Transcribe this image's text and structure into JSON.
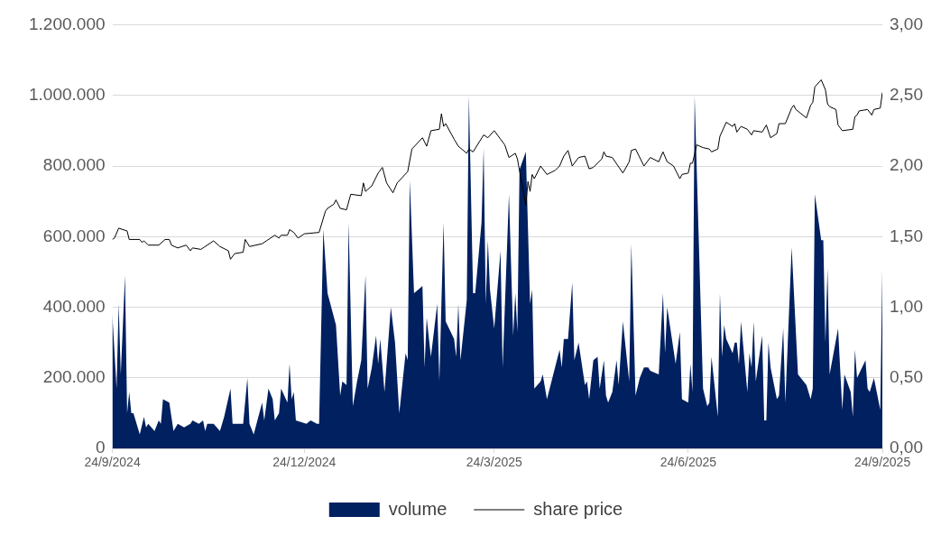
{
  "chart_data": {
    "type": "area",
    "series": [
      {
        "name": "volume",
        "color": "#002060",
        "x": [
          "2024-09-24",
          "2024-09-26",
          "2024-09-27",
          "2024-09-28",
          "2024-09-30",
          "2024-10-01",
          "2024-10-02",
          "2024-10-03",
          "2024-10-04",
          "2024-10-07",
          "2024-10-09",
          "2024-10-10",
          "2024-10-11",
          "2024-10-14",
          "2024-10-16",
          "2024-10-17",
          "2024-10-18",
          "2024-10-21",
          "2024-10-23",
          "2024-10-25",
          "2024-10-28",
          "2024-10-31",
          "2024-11-01",
          "2024-11-04",
          "2024-11-06",
          "2024-11-07",
          "2024-11-08",
          "2024-11-11",
          "2024-11-14",
          "2024-11-16",
          "2024-11-19",
          "2024-11-20",
          "2024-11-23",
          "2024-11-25",
          "2024-11-27",
          "2024-11-28",
          "2024-11-30",
          "2024-12-04",
          "2024-12-05",
          "2024-12-07",
          "2024-12-09",
          "2024-12-10",
          "2024-12-12",
          "2024-12-13",
          "2024-12-16",
          "2024-12-17",
          "2024-12-18",
          "2024-12-19",
          "2024-12-20",
          "2024-12-25",
          "2024-12-27",
          "2024-12-30",
          "2024-12-31",
          "2025-01-02",
          "2025-01-04",
          "2025-01-08",
          "2025-01-10",
          "2025-01-11",
          "2025-01-13",
          "2025-01-14",
          "2025-01-16",
          "2025-01-18",
          "2025-01-20",
          "2025-01-22",
          "2025-01-23",
          "2025-01-25",
          "2025-01-27",
          "2025-01-28",
          "2025-01-29",
          "2025-01-31",
          "2025-02-03",
          "2025-02-05",
          "2025-02-07",
          "2025-02-10",
          "2025-02-11",
          "2025-02-12",
          "2025-02-14",
          "2025-02-18",
          "2025-02-19",
          "2025-02-20",
          "2025-02-22",
          "2025-02-25",
          "2025-02-26",
          "2025-02-28",
          "2025-03-01",
          "2025-03-05",
          "2025-03-06",
          "2025-03-07",
          "2025-03-08",
          "2025-03-11",
          "2025-03-12",
          "2025-03-14",
          "2025-03-15",
          "2025-03-18",
          "2025-03-19",
          "2025-03-20",
          "2025-03-21",
          "2025-03-22",
          "2025-03-24",
          "2025-03-27",
          "2025-03-28",
          "2025-03-31",
          "2025-04-02",
          "2025-04-03",
          "2025-04-04",
          "2025-04-05",
          "2025-04-08",
          "2025-04-10",
          "2025-04-11",
          "2025-04-12",
          "2025-04-15",
          "2025-04-16",
          "2025-04-18",
          "2025-04-24",
          "2025-04-25",
          "2025-04-26",
          "2025-04-28",
          "2025-04-30",
          "2025-05-01",
          "2025-05-03",
          "2025-05-06",
          "2025-05-07",
          "2025-05-08",
          "2025-05-10",
          "2025-05-12",
          "2025-05-13",
          "2025-05-15",
          "2025-05-16",
          "2025-05-17",
          "2025-05-19",
          "2025-05-21",
          "2025-05-22",
          "2025-05-24",
          "2025-05-27",
          "2025-05-28",
          "2025-05-30",
          "2025-06-01",
          "2025-06-03",
          "2025-06-05",
          "2025-06-06",
          "2025-06-10",
          "2025-06-12",
          "2025-06-13",
          "2025-06-14",
          "2025-06-18",
          "2025-06-20",
          "2025-06-21",
          "2025-06-24",
          "2025-06-25",
          "2025-06-26",
          "2025-06-27",
          "2025-07-01",
          "2025-07-03",
          "2025-07-04",
          "2025-07-05",
          "2025-07-08",
          "2025-07-09",
          "2025-07-10",
          "2025-07-11",
          "2025-07-12",
          "2025-07-15",
          "2025-07-16",
          "2025-07-17",
          "2025-07-18",
          "2025-07-19",
          "2025-07-22",
          "2025-07-23",
          "2025-07-24",
          "2025-07-25",
          "2025-07-26",
          "2025-07-29",
          "2025-07-30",
          "2025-07-31",
          "2025-08-01",
          "2025-08-02",
          "2025-08-05",
          "2025-08-06",
          "2025-08-08",
          "2025-08-09",
          "2025-08-12",
          "2025-08-15",
          "2025-08-19",
          "2025-08-21",
          "2025-08-22",
          "2025-08-23",
          "2025-08-26",
          "2025-08-27",
          "2025-08-28",
          "2025-08-29",
          "2025-08-30",
          "2025-09-03",
          "2025-09-05",
          "2025-09-06",
          "2025-09-09",
          "2025-09-10",
          "2025-09-11",
          "2025-09-12",
          "2025-09-16",
          "2025-09-17",
          "2025-09-18",
          "2025-09-20",
          "2025-09-23",
          "2025-09-24"
        ],
        "values": [
          380000,
          170000,
          410000,
          210000,
          490000,
          100000,
          160000,
          100000,
          100000,
          40000,
          90000,
          60000,
          70000,
          50000,
          80000,
          70000,
          140000,
          130000,
          50000,
          70000,
          60000,
          70000,
          80000,
          70000,
          80000,
          50000,
          70000,
          70000,
          50000,
          90000,
          170000,
          70000,
          70000,
          70000,
          200000,
          70000,
          40000,
          130000,
          80000,
          170000,
          140000,
          80000,
          100000,
          170000,
          130000,
          240000,
          140000,
          160000,
          80000,
          70000,
          80000,
          70000,
          70000,
          620000,
          440000,
          350000,
          150000,
          190000,
          180000,
          640000,
          120000,
          190000,
          250000,
          490000,
          170000,
          230000,
          320000,
          240000,
          310000,
          160000,
          400000,
          300000,
          100000,
          270000,
          250000,
          760000,
          440000,
          460000,
          230000,
          370000,
          260000,
          410000,
          190000,
          640000,
          360000,
          310000,
          260000,
          410000,
          250000,
          420000,
          1000000,
          440000,
          440000,
          640000,
          850000,
          410000,
          590000,
          450000,
          340000,
          560000,
          230000,
          720000,
          320000,
          440000,
          330000,
          790000,
          840000,
          410000,
          450000,
          170000,
          190000,
          210000,
          140000,
          280000,
          230000,
          310000,
          310000,
          470000,
          250000,
          300000,
          180000,
          190000,
          140000,
          250000,
          260000,
          170000,
          250000,
          150000,
          130000,
          160000,
          250000,
          180000,
          360000,
          190000,
          580000,
          150000,
          200000,
          230000,
          230000,
          220000,
          210000,
          440000,
          270000,
          400000,
          240000,
          330000,
          140000,
          130000,
          240000,
          160000,
          1000000,
          170000,
          120000,
          130000,
          260000,
          90000,
          440000,
          260000,
          350000,
          310000,
          270000,
          300000,
          300000,
          240000,
          360000,
          160000,
          270000,
          230000,
          360000,
          190000,
          320000,
          80000,
          80000,
          300000,
          230000,
          140000,
          150000,
          340000,
          130000,
          570000,
          210000,
          180000,
          140000,
          170000,
          720000,
          590000,
          590000,
          300000,
          510000,
          210000,
          340000,
          110000,
          210000,
          160000,
          90000,
          280000,
          200000,
          250000,
          170000,
          160000,
          200000,
          110000,
          510000
        ]
      },
      {
        "name": "share price",
        "type": "line",
        "axis": "y2",
        "color": "#000000",
        "x": [
          "2024-09-24",
          "2024-09-25",
          "2024-09-27",
          "2024-10-01",
          "2024-10-02",
          "2024-10-07",
          "2024-10-08",
          "2024-10-09",
          "2024-10-11",
          "2024-10-16",
          "2024-10-19",
          "2024-10-21",
          "2024-10-22",
          "2024-10-25",
          "2024-10-29",
          "2024-10-31",
          "2024-11-01",
          "2024-11-05",
          "2024-11-06",
          "2024-11-11",
          "2024-11-14",
          "2024-11-18",
          "2024-11-19",
          "2024-11-21",
          "2024-11-25",
          "2024-11-26",
          "2024-11-28",
          "2024-12-04",
          "2024-12-06",
          "2024-12-10",
          "2024-12-12",
          "2024-12-13",
          "2024-12-16",
          "2024-12-17",
          "2024-12-19",
          "2024-12-21",
          "2024-12-24",
          "2024-12-31",
          "2025-01-03",
          "2025-01-04",
          "2025-01-07",
          "2025-01-08",
          "2025-01-10",
          "2025-01-13",
          "2025-01-15",
          "2025-01-20",
          "2025-01-21",
          "2025-01-22",
          "2025-01-25",
          "2025-01-28",
          "2025-01-30",
          "2025-02-01",
          "2025-02-04",
          "2025-02-06",
          "2025-02-11",
          "2025-02-13",
          "2025-02-18",
          "2025-02-20",
          "2025-02-22",
          "2025-02-26",
          "2025-02-27",
          "2025-02-28",
          "2025-03-01",
          "2025-03-05",
          "2025-03-07",
          "2025-03-11",
          "2025-03-12",
          "2025-03-14",
          "2025-03-19",
          "2025-03-21",
          "2025-03-24",
          "2025-03-27",
          "2025-03-29",
          "2025-03-31",
          "2025-04-03",
          "2025-04-04",
          "2025-04-08",
          "2025-04-09",
          "2025-04-10",
          "2025-04-11",
          "2025-04-12",
          "2025-04-15",
          "2025-04-18",
          "2025-04-22",
          "2025-04-24",
          "2025-04-26",
          "2025-04-28",
          "2025-04-30",
          "2025-05-03",
          "2025-05-06",
          "2025-05-08",
          "2025-05-10",
          "2025-05-14",
          "2025-05-15",
          "2025-05-16",
          "2025-05-19",
          "2025-05-24",
          "2025-05-27",
          "2025-05-28",
          "2025-05-30",
          "2025-06-03",
          "2025-06-06",
          "2025-06-10",
          "2025-06-12",
          "2025-06-14",
          "2025-06-17",
          "2025-06-20",
          "2025-06-21",
          "2025-06-24",
          "2025-06-25",
          "2025-06-26",
          "2025-06-28",
          "2025-07-01",
          "2025-07-04",
          "2025-07-05",
          "2025-07-08",
          "2025-07-09",
          "2025-07-12",
          "2025-07-15",
          "2025-07-16",
          "2025-07-17",
          "2025-07-19",
          "2025-07-22",
          "2025-07-24",
          "2025-07-25",
          "2025-07-29",
          "2025-07-31",
          "2025-08-02",
          "2025-08-05",
          "2025-08-06",
          "2025-08-09",
          "2025-08-12",
          "2025-08-13",
          "2025-08-14",
          "2025-08-19",
          "2025-08-21",
          "2025-08-22",
          "2025-08-23",
          "2025-08-26",
          "2025-08-28",
          "2025-08-29",
          "2025-08-30",
          "2025-09-02",
          "2025-09-03",
          "2025-09-05",
          "2025-09-10",
          "2025-09-11",
          "2025-09-12",
          "2025-09-13",
          "2025-09-17",
          "2025-09-19",
          "2025-09-20",
          "2025-09-23",
          "2025-09-24"
        ],
        "values": [
          1.48,
          1.49,
          1.56,
          1.54,
          1.48,
          1.48,
          1.46,
          1.47,
          1.44,
          1.44,
          1.48,
          1.48,
          1.44,
          1.42,
          1.44,
          1.4,
          1.42,
          1.41,
          1.42,
          1.47,
          1.43,
          1.4,
          1.34,
          1.38,
          1.39,
          1.48,
          1.43,
          1.45,
          1.47,
          1.51,
          1.49,
          1.51,
          1.51,
          1.55,
          1.53,
          1.49,
          1.52,
          1.53,
          1.68,
          1.7,
          1.73,
          1.76,
          1.7,
          1.69,
          1.8,
          1.79,
          1.88,
          1.82,
          1.86,
          1.95,
          1.99,
          1.88,
          1.81,
          1.88,
          1.96,
          2.12,
          2.2,
          2.14,
          2.25,
          2.26,
          2.37,
          2.28,
          2.3,
          2.19,
          2.14,
          2.09,
          2.12,
          2.1,
          2.22,
          2.2,
          2.25,
          2.19,
          2.15,
          2.06,
          2.09,
          2.05,
          1.72,
          1.89,
          1.82,
          1.94,
          1.91,
          2.0,
          1.94,
          1.97,
          2.0,
          2.07,
          2.11,
          2.0,
          2.06,
          2.07,
          1.98,
          1.99,
          2.05,
          2.1,
          2.07,
          2.06,
          1.95,
          2.03,
          2.11,
          2.12,
          2.0,
          2.06,
          2.03,
          2.1,
          2.03,
          2.0,
          1.91,
          1.94,
          1.95,
          2.02,
          2.02,
          2.15,
          2.13,
          2.12,
          2.1,
          2.12,
          2.21,
          2.31,
          2.28,
          2.3,
          2.24,
          2.28,
          2.26,
          2.22,
          2.25,
          2.24,
          2.29,
          2.2,
          2.23,
          2.3,
          2.3,
          2.41,
          2.43,
          2.4,
          2.34,
          2.43,
          2.45,
          2.56,
          2.61,
          2.54,
          2.44,
          2.42,
          2.4,
          2.29,
          2.25,
          2.26,
          2.35,
          2.36,
          2.39,
          2.4,
          2.36,
          2.4,
          2.41,
          2.52
        ]
      }
    ],
    "xlim": [
      "2024-09-24",
      "2025-09-24"
    ],
    "xticks": [
      {
        "value": "2024-09-24",
        "label": "24/9/2024"
      },
      {
        "value": "2024-12-24",
        "label": "24/12/2024"
      },
      {
        "value": "2025-03-24",
        "label": "24/3/2025"
      },
      {
        "value": "2025-06-24",
        "label": "24/6/2025"
      },
      {
        "value": "2025-09-24",
        "label": "24/9/2025"
      }
    ],
    "ylim": [
      0,
      1200000
    ],
    "yticks": [
      0,
      {
        "value": 200000,
        "label": "200.000"
      },
      {
        "value": 400000,
        "label": "400.000"
      },
      {
        "value": 600000,
        "label": "600.000"
      },
      {
        "value": 800000,
        "label": "800.000"
      },
      {
        "value": 1000000,
        "label": "1.000.000"
      },
      {
        "value": 1200000,
        "label": "1.200.000"
      }
    ],
    "y2lim": [
      0,
      3
    ],
    "y2ticks": [
      {
        "value": 0,
        "label": "0,00"
      },
      {
        "value": 0.5,
        "label": "0,50"
      },
      {
        "value": 1,
        "label": "1,00"
      },
      {
        "value": 1.5,
        "label": "1,50"
      },
      {
        "value": 2,
        "label": "2,00"
      },
      {
        "value": 2.5,
        "label": "2,50"
      },
      {
        "value": 3,
        "label": "3,00"
      }
    ],
    "grid": "y",
    "legend": "bottom",
    "marker": "none",
    "line_style": "solid"
  }
}
